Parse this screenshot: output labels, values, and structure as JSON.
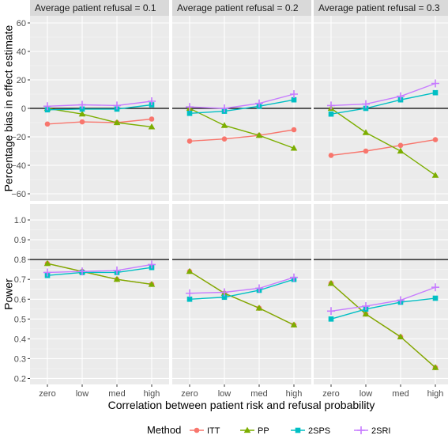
{
  "chart_data": {
    "type": "line",
    "facet_titles": [
      "Average patient refusal = 0.1",
      "Average patient refusal = 0.2",
      "Average patient refusal = 0.3"
    ],
    "categories": [
      "zero",
      "low",
      "med",
      "high"
    ],
    "xlabel": "Correlation between patient risk and refusal probability",
    "legend": {
      "title": "Method",
      "position": "bottom"
    },
    "colors": {
      "ITT": "#f8766d",
      "PP": "#7cae00",
      "2SPS": "#00bfc4",
      "2SRI": "#c77cff"
    },
    "rows": [
      {
        "ylabel": "Percentage bias in effect estimate",
        "ylim": [
          -65,
          65
        ],
        "ticks": [
          60,
          40,
          20,
          0,
          -20,
          -40,
          -60
        ],
        "tick_labels": [
          "60",
          "40",
          "20",
          "0",
          "−20",
          "−40",
          "−60"
        ],
        "hline": 0,
        "panels": [
          {
            "series": [
              {
                "name": "ITT",
                "values": [
                  -11,
                  -9.5,
                  -10,
                  -7.5
                ]
              },
              {
                "name": "PP",
                "values": [
                  0,
                  -4,
                  -10,
                  -13
                ]
              },
              {
                "name": "2SPS",
                "values": [
                  -1,
                  -0.5,
                  -0.5,
                  2.5
                ]
              },
              {
                "name": "2SRI",
                "values": [
                  1.5,
                  2.5,
                  2,
                  5
                ]
              }
            ]
          },
          {
            "series": [
              {
                "name": "ITT",
                "values": [
                  -23,
                  -21.5,
                  -19,
                  -15
                ]
              },
              {
                "name": "PP",
                "values": [
                  0,
                  -12,
                  -19,
                  -28
                ]
              },
              {
                "name": "2SPS",
                "values": [
                  -3.5,
                  -2,
                  1.5,
                  6
                ]
              },
              {
                "name": "2SRI",
                "values": [
                  1,
                  0,
                  3.5,
                  10
                ]
              }
            ]
          },
          {
            "series": [
              {
                "name": "ITT",
                "values": [
                  -33,
                  -30,
                  -26,
                  -22
                ]
              },
              {
                "name": "PP",
                "values": [
                  0,
                  -17,
                  -30,
                  -47
                ]
              },
              {
                "name": "2SPS",
                "values": [
                  -4,
                  0,
                  6,
                  11
                ]
              },
              {
                "name": "2SRI",
                "values": [
                  2,
                  3,
                  8.5,
                  17.5
                ]
              }
            ]
          }
        ]
      },
      {
        "ylabel": "Power",
        "ylim": [
          0.17,
          1.08
        ],
        "ticks": [
          1.0,
          0.9,
          0.8,
          0.7,
          0.6,
          0.5,
          0.4,
          0.3,
          0.2
        ],
        "tick_labels": [
          "1.0",
          "0.9",
          "0.8",
          "0.7",
          "0.6",
          "0.5",
          "0.4",
          "0.3",
          "0.2"
        ],
        "hline": 0.8,
        "panels": [
          {
            "series": [
              {
                "name": "ITT",
                "values": [
                  0.78,
                  0.74,
                  0.7,
                  0.675
                ]
              },
              {
                "name": "PP",
                "values": [
                  0.78,
                  0.74,
                  0.7,
                  0.675
                ]
              },
              {
                "name": "2SPS",
                "values": [
                  0.72,
                  0.735,
                  0.735,
                  0.76
                ]
              },
              {
                "name": "2SRI",
                "values": [
                  0.735,
                  0.74,
                  0.745,
                  0.775
                ]
              }
            ]
          },
          {
            "series": [
              {
                "name": "ITT",
                "values": [
                  0.74,
                  0.63,
                  0.555,
                  0.47
                ]
              },
              {
                "name": "PP",
                "values": [
                  0.74,
                  0.63,
                  0.555,
                  0.47
                ]
              },
              {
                "name": "2SPS",
                "values": [
                  0.6,
                  0.61,
                  0.645,
                  0.7
                ]
              },
              {
                "name": "2SRI",
                "values": [
                  0.63,
                  0.635,
                  0.655,
                  0.71
                ]
              }
            ]
          },
          {
            "series": [
              {
                "name": "ITT",
                "values": [
                  0.68,
                  0.525,
                  0.41,
                  0.255
                ]
              },
              {
                "name": "PP",
                "values": [
                  0.68,
                  0.525,
                  0.41,
                  0.255
                ]
              },
              {
                "name": "2SPS",
                "values": [
                  0.5,
                  0.55,
                  0.585,
                  0.605
                ]
              },
              {
                "name": "2SRI",
                "values": [
                  0.54,
                  0.565,
                  0.595,
                  0.66
                ]
              }
            ]
          }
        ]
      }
    ]
  }
}
